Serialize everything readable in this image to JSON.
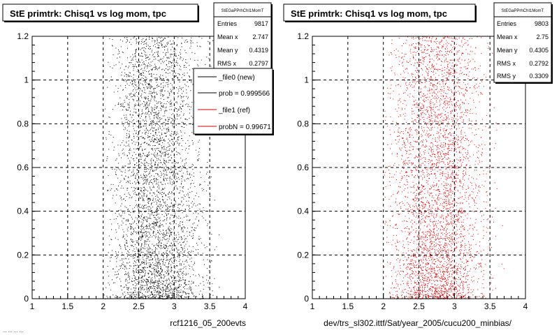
{
  "footer_left": "... ...  ...  ...",
  "chart_data": [
    {
      "type": "scatter",
      "title": "StE primtrk: Chisq1 vs log mom, tpc",
      "xlabel": "rcf1216_05_200evts",
      "ylabel": "",
      "xlim": [
        1,
        4
      ],
      "ylim": [
        0,
        1.2
      ],
      "x_ticks": [
        "1",
        "1.5",
        "2",
        "2.5",
        "3",
        "3.5",
        "4"
      ],
      "y_ticks": [
        "0",
        "0.2",
        "0.4",
        "0.6",
        "0.8",
        "1",
        "1.2"
      ],
      "grid": true,
      "point_color": "#000000",
      "approx_points": 9817,
      "x_distribution": {
        "min": 2.05,
        "max": 3.85,
        "peak": 2.75
      },
      "stats": {
        "title": "StEGaPPrhChI1MomT",
        "rows": [
          {
            "label": "Entries",
            "value": "9817"
          },
          {
            "label": "Mean x",
            "value": "2.747"
          },
          {
            "label": "Mean y",
            "value": "0.4319"
          },
          {
            "label": "RMS x",
            "value": "0.2797"
          }
        ]
      },
      "legend": {
        "placement": "top-right",
        "entries": [
          {
            "label": "_file0 (new)",
            "color": "#000000"
          },
          {
            "label": "prob = 0.999566",
            "color": "#000000"
          },
          {
            "label": "_file1 (ref)",
            "color": "#cc0000"
          },
          {
            "label": "probN = 0.99671",
            "color": "#cc0000"
          }
        ]
      }
    },
    {
      "type": "scatter",
      "title": "StE primtrk: Chisq1 vs log mom, tpc",
      "xlabel": "dev/trs_sl302.ittf/Sat/year_2005/cucu200_minbias/",
      "ylabel": "",
      "xlim": [
        1,
        4
      ],
      "ylim": [
        0,
        1.2
      ],
      "x_ticks": [
        "1",
        "1.5",
        "2",
        "2.5",
        "3",
        "3.5",
        "4"
      ],
      "y_ticks": [
        "0",
        "0.2",
        "0.4",
        "0.6",
        "0.8",
        "1",
        "1.2"
      ],
      "grid": true,
      "point_color": "#dd0000",
      "approx_points": 9803,
      "x_distribution": {
        "min": 2.05,
        "max": 3.85,
        "peak": 2.75
      },
      "stats": {
        "title": "StEGaPPrhChI1MomT",
        "rows": [
          {
            "label": "Entries",
            "value": "9803"
          },
          {
            "label": "Mean x",
            "value": "2.75"
          },
          {
            "label": "Mean y",
            "value": "0.4305"
          },
          {
            "label": "RMS x",
            "value": "0.2792"
          },
          {
            "label": "RMS y",
            "value": "0.3309"
          }
        ]
      }
    }
  ]
}
